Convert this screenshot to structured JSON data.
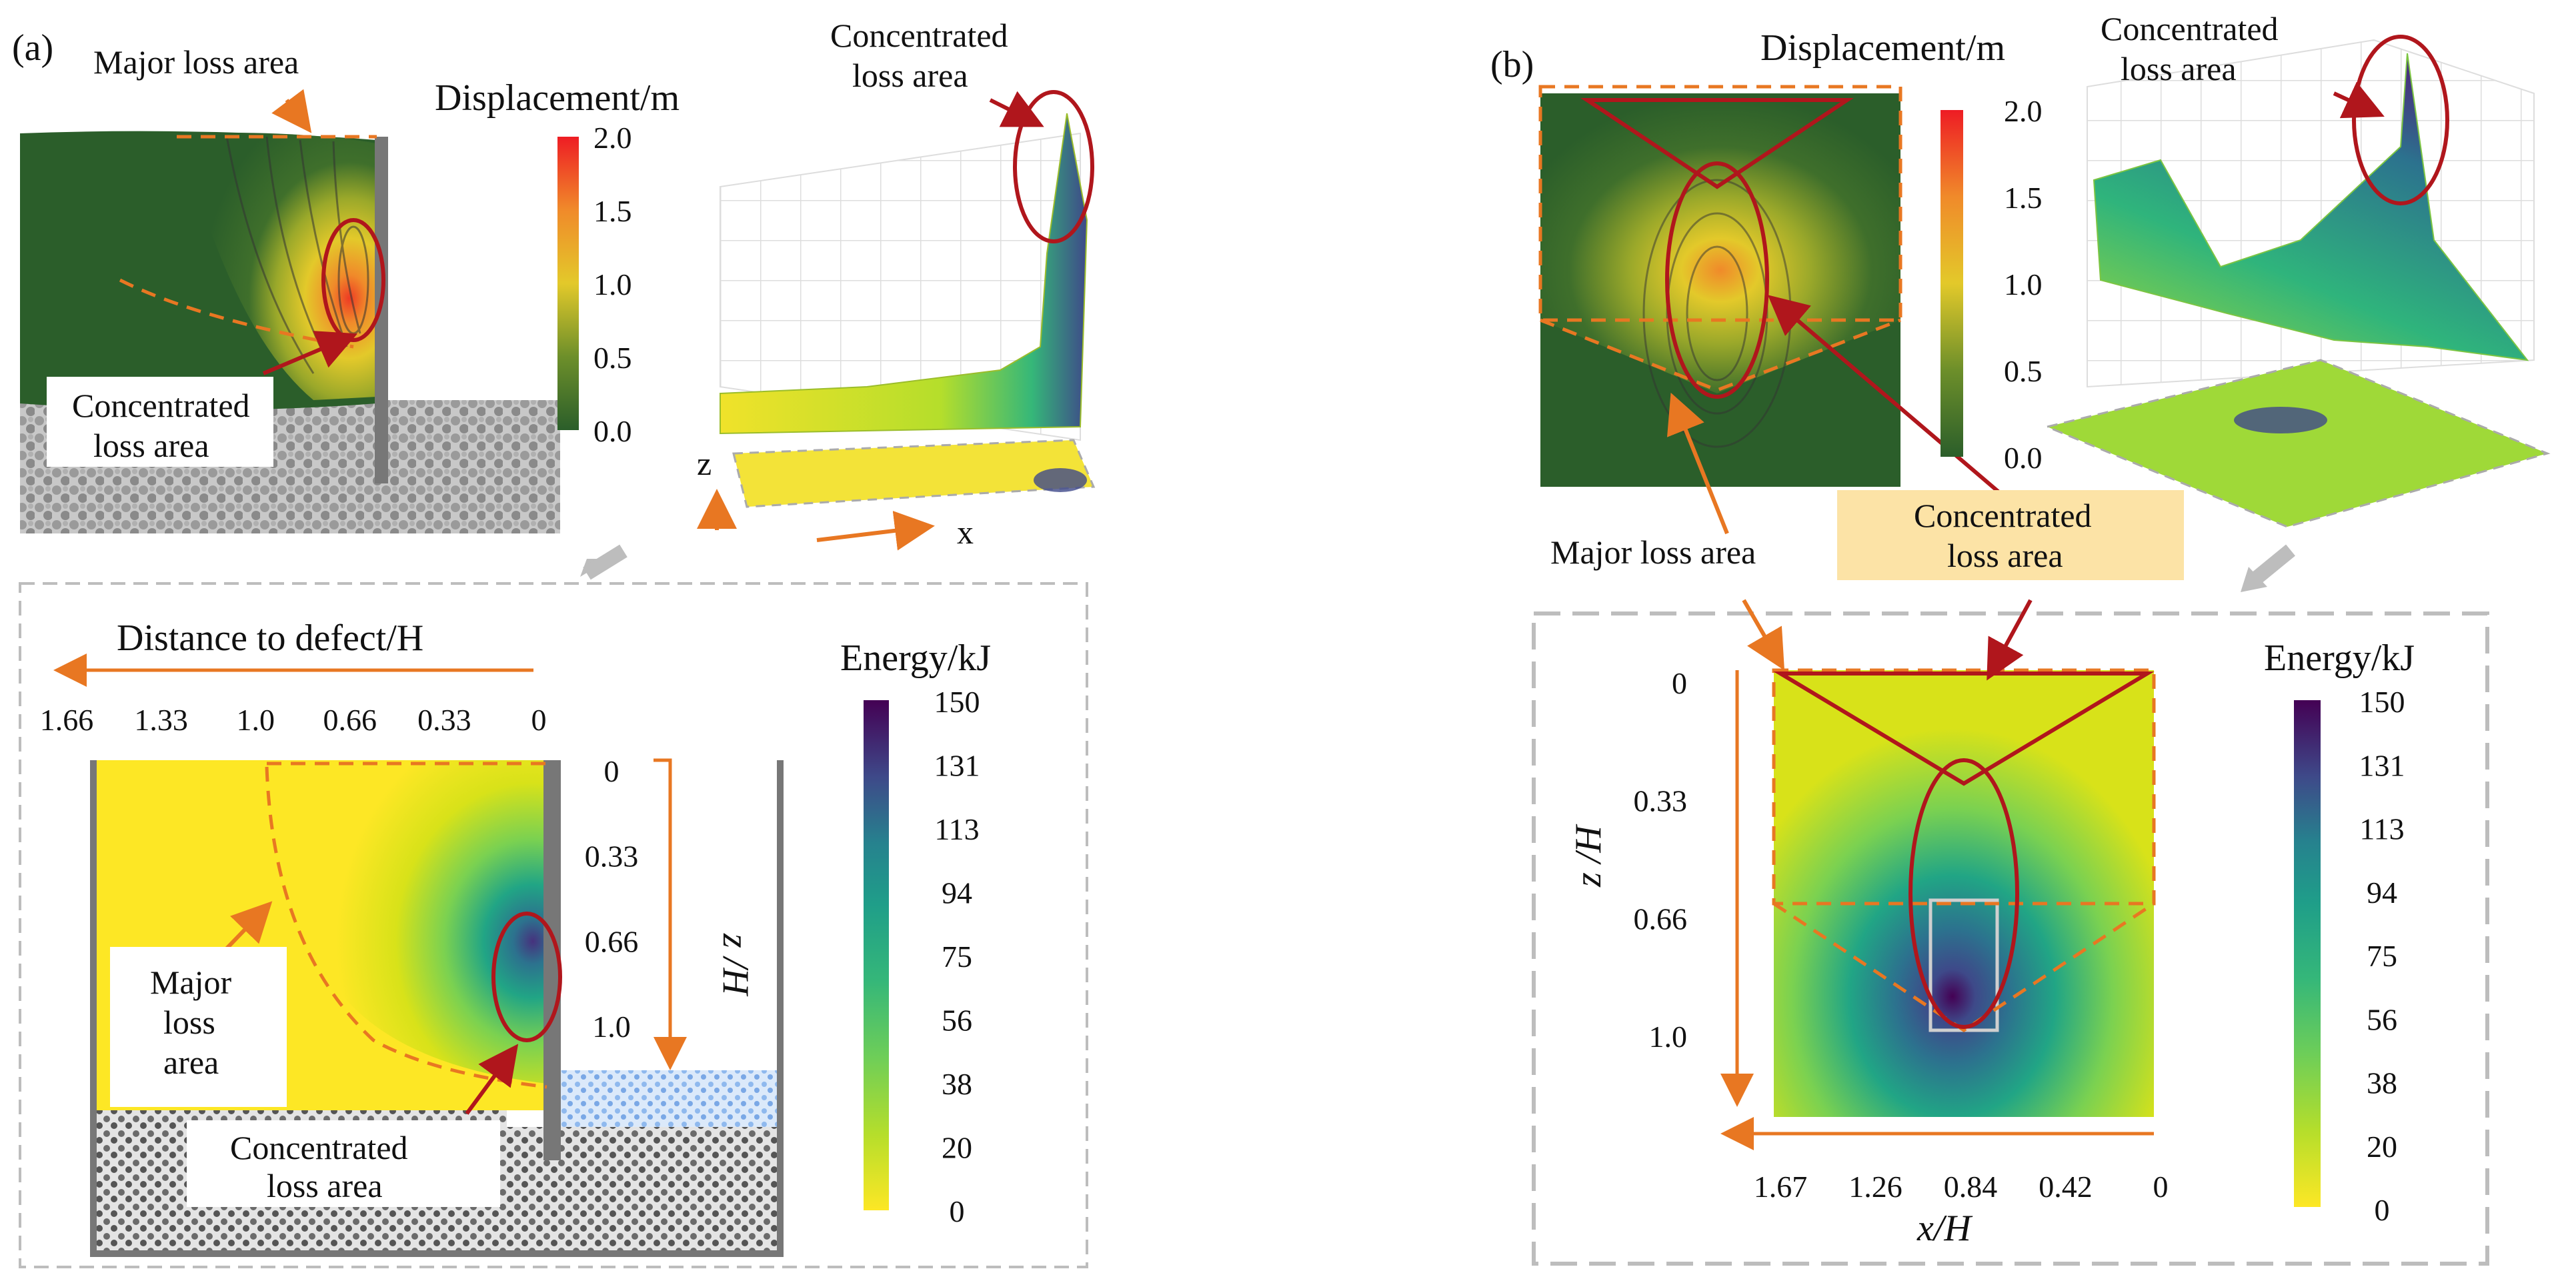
{
  "panel_a": {
    "label": "(a)",
    "displacement": {
      "major_loss_label": "Major loss area",
      "concentrated_label_1": "Concentrated",
      "concentrated_label_2": "loss area",
      "colorbar_title": "Displacement/m",
      "colorbar_ticks": [
        "2.0",
        "1.5",
        "1.0",
        "0.5",
        "0.0"
      ]
    },
    "surface3d": {
      "concentrated_label_1": "Concentrated",
      "concentrated_label_2": "loss area",
      "axis_z": "z",
      "axis_x": "x"
    },
    "energy": {
      "distance_axis_label": "Distance to defect/H",
      "distance_ticks": [
        "1.66",
        "1.33",
        "1.0",
        "0.66",
        "0.33",
        "0"
      ],
      "depth_axis_label": "z /H",
      "depth_ticks": [
        "0",
        "0.33",
        "0.66",
        "1.0"
      ],
      "major_label_1": "Major",
      "major_label_2": "loss",
      "major_label_3": "area",
      "concentrated_label_1": "Concentrated",
      "concentrated_label_2": "loss area",
      "colorbar_title": "Energy/kJ",
      "colorbar_ticks": [
        "150",
        "131",
        "113",
        "94",
        "75",
        "56",
        "38",
        "20",
        "0"
      ]
    }
  },
  "panel_b": {
    "label": "(b)",
    "displacement": {
      "colorbar_title": "Displacement/m",
      "colorbar_ticks": [
        "2.0",
        "1.5",
        "1.0",
        "0.5",
        "0.0"
      ],
      "major_loss_label": "Major loss area",
      "concentrated_label_1": "Concentrated",
      "concentrated_label_2": "loss area"
    },
    "surface3d": {
      "concentrated_label_1": "Concentrated",
      "concentrated_label_2": "loss area"
    },
    "energy": {
      "z_axis_label": "z /H",
      "z_ticks": [
        "0",
        "0.33",
        "0.66",
        "1.0"
      ],
      "x_axis_label": "x/H",
      "x_ticks": [
        "1.67",
        "1.26",
        "0.84",
        "0.42",
        "0"
      ],
      "colorbar_title": "Energy/kJ",
      "colorbar_ticks": [
        "150",
        "131",
        "113",
        "94",
        "75",
        "56",
        "38",
        "20",
        "0"
      ]
    }
  },
  "colors": {
    "orange": "#e87722",
    "red": "#b0161c",
    "green": "#2e5e2e",
    "highlight": "#fce3a6",
    "frame": "#b8b8b8"
  }
}
